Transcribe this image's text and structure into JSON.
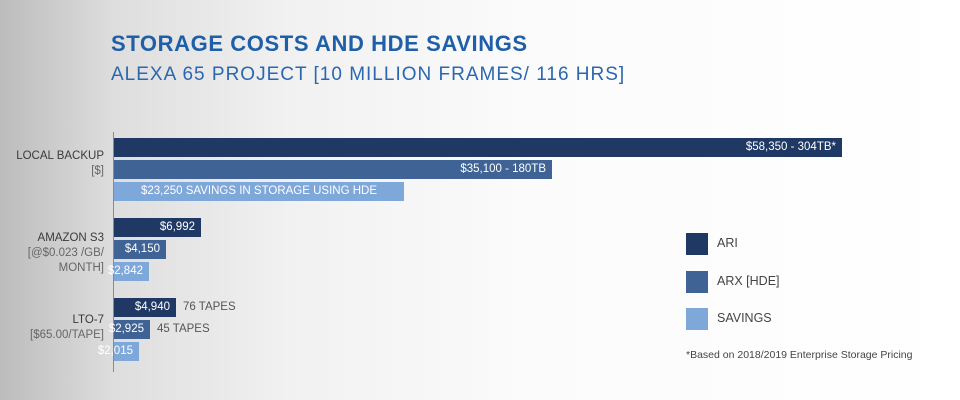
{
  "title": "STORAGE COSTS AND HDE SAVINGS",
  "subtitle": "ALEXA 65 PROJECT [10 MILLION FRAMES/ 116 HRS]",
  "footnote": "*Based on 2018/2019 Enterprise Storage Pricing",
  "colors": {
    "ari": "#1f3864",
    "arx": "#3f6394",
    "savings": "#7ea7da"
  },
  "chart_data": {
    "type": "bar",
    "orientation": "horizontal",
    "title": "STORAGE COSTS AND HDE SAVINGS",
    "subtitle": "ALEXA 65 PROJECT [10 MILLION FRAMES/ 116 HRS]",
    "categories": [
      {
        "name": "LOCAL BACKUP",
        "unit": "[$]"
      },
      {
        "name": "AMAZON S3",
        "unit": "[@$0.023 /GB/ MONTH]"
      },
      {
        "name": "LTO-7",
        "unit": "[$65.00/TAPE]"
      }
    ],
    "series": [
      {
        "name": "ARI",
        "values": [
          58350,
          6992,
          4940
        ],
        "labels": [
          "$58,350 - 304TB*",
          "$6,992",
          "$4,940"
        ],
        "annotations": [
          "",
          "",
          "76 TAPES"
        ]
      },
      {
        "name": "ARX [HDE]",
        "values": [
          35100,
          4150,
          2925
        ],
        "labels": [
          "$35,100 - 180TB",
          "$4,150",
          "$2,925"
        ],
        "annotations": [
          "",
          "",
          "45 TAPES"
        ]
      },
      {
        "name": "SAVINGS",
        "values": [
          23250,
          2842,
          2015
        ],
        "labels": [
          "$23,250 SAVINGS IN STORAGE USING HDE",
          "$2,842",
          "$2,015"
        ],
        "annotations": [
          "",
          "",
          ""
        ]
      }
    ],
    "legend_position": "right",
    "grid": false
  }
}
